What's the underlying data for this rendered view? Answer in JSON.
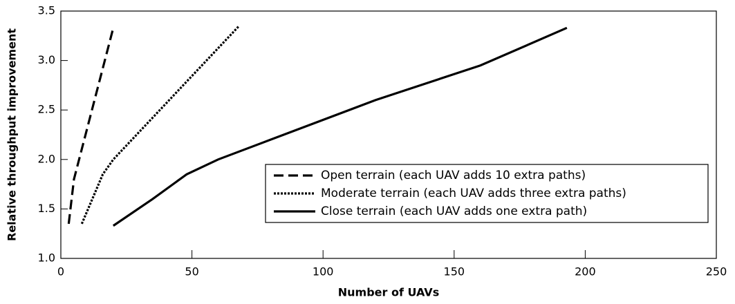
{
  "chart_data": {
    "type": "line",
    "xlabel": "Number of UAVs",
    "ylabel": "Relative throughput improvement",
    "xlim": [
      0,
      250
    ],
    "ylim": [
      1.0,
      3.5
    ],
    "xticks": [
      0,
      50,
      100,
      150,
      200,
      250
    ],
    "yticks": [
      {
        "value": 1.0,
        "label": "1.0"
      },
      {
        "value": 1.5,
        "label": "1.5"
      },
      {
        "value": 2.0,
        "label": "2.0"
      },
      {
        "value": 2.5,
        "label": "2.5"
      },
      {
        "value": 3.0,
        "label": "3.0"
      },
      {
        "value": 3.5,
        "label": "3.5"
      }
    ],
    "grid": false,
    "legend": "lower right",
    "series": [
      {
        "name": "Open terrain (each UAV adds 10 extra paths)",
        "color": "#000000",
        "dash": "dashed",
        "x": [
          3,
          5,
          20
        ],
        "values": [
          1.35,
          1.8,
          3.33
        ]
      },
      {
        "name": "Moderate terrain (each UAV adds three extra paths)",
        "color": "#000000",
        "dash": "dotted",
        "x": [
          8,
          12,
          16,
          20,
          68
        ],
        "values": [
          1.35,
          1.6,
          1.85,
          2.0,
          3.35
        ]
      },
      {
        "name": "Close terrain (each UAV adds one extra path)",
        "color": "#000000",
        "dash": "solid",
        "x": [
          20,
          35,
          48,
          60,
          80,
          120,
          160,
          193
        ],
        "values": [
          1.33,
          1.6,
          1.85,
          2.0,
          2.2,
          2.6,
          2.95,
          3.33
        ]
      }
    ]
  }
}
